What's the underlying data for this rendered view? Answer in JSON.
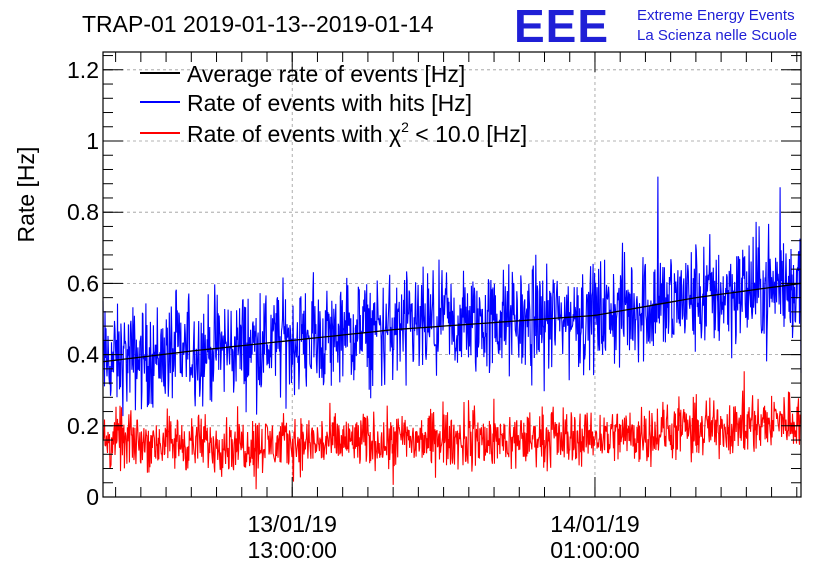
{
  "chart_data": {
    "type": "line",
    "title": "TRAP-01 2019-01-13--2019-01-14",
    "ylabel": "Rate [Hz]",
    "xlabel": "",
    "ylim": [
      0,
      1.25
    ],
    "yticks": [
      0,
      0.2,
      0.4,
      0.6,
      0.8,
      1,
      1.2
    ],
    "ytick_labels": [
      "0",
      "0.2",
      "0.4",
      "0.6",
      "0.8",
      "1",
      "1.2"
    ],
    "x_start": "2019-01-13 05:30:00",
    "x_end": "2019-01-14 09:10:00",
    "xticks": [
      {
        "at": "2019-01-13 13:00:00",
        "line1": "13/01/19",
        "line2": "13:00:00"
      },
      {
        "at": "2019-01-14 01:00:00",
        "line1": "14/01/19",
        "line2": "01:00:00"
      }
    ],
    "grid": true,
    "legend_placement": "top-left",
    "series": [
      {
        "name": "Average rate of events [Hz]",
        "color": "#000000",
        "style": "smooth",
        "x": [
          "2019-01-13 05:30:00",
          "2019-01-13 09:00:00",
          "2019-01-13 13:00:00",
          "2019-01-13 17:00:00",
          "2019-01-13 21:00:00",
          "2019-01-14 01:00:00",
          "2019-01-14 05:00:00",
          "2019-01-14 09:10:00"
        ],
        "values": [
          0.38,
          0.41,
          0.44,
          0.47,
          0.49,
          0.51,
          0.56,
          0.6
        ]
      },
      {
        "name": "Rate of events with hits [Hz]",
        "color": "#0000ff",
        "style": "noisy",
        "x": [
          "2019-01-13 05:30:00",
          "2019-01-13 09:00:00",
          "2019-01-13 13:00:00",
          "2019-01-13 17:00:00",
          "2019-01-13 21:00:00",
          "2019-01-14 01:00:00",
          "2019-01-14 05:00:00",
          "2019-01-14 09:10:00"
        ],
        "values": [
          0.38,
          0.41,
          0.44,
          0.47,
          0.49,
          0.51,
          0.56,
          0.6
        ],
        "noise_amplitude": 0.11,
        "peaks": [
          {
            "x": "2019-01-14 03:30:00",
            "y": 0.9
          },
          {
            "x": "2019-01-14 08:20:00",
            "y": 0.87
          }
        ]
      },
      {
        "name": "Rate of events with χ² < 10.0 [Hz]",
        "legend_parts": [
          "Rate of events with χ",
          "2",
          " < 10.0 [Hz]"
        ],
        "color": "#ff0000",
        "style": "noisy",
        "x": [
          "2019-01-13 05:30:00",
          "2019-01-13 09:00:00",
          "2019-01-13 13:00:00",
          "2019-01-13 17:00:00",
          "2019-01-13 21:00:00",
          "2019-01-14 01:00:00",
          "2019-01-14 05:00:00",
          "2019-01-14 09:10:00"
        ],
        "values": [
          0.16,
          0.15,
          0.15,
          0.16,
          0.16,
          0.17,
          0.19,
          0.22
        ],
        "noise_amplitude": 0.07
      }
    ]
  },
  "logo": {
    "mark": "EEE",
    "line1": "Extreme Energy Events",
    "line2": "La Scienza nelle Scuole"
  }
}
